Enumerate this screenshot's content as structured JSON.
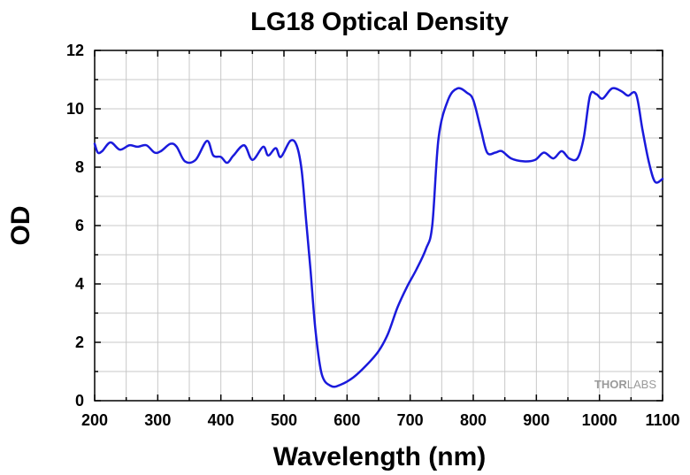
{
  "chart_data": {
    "type": "line",
    "title": "LG18 Optical Density",
    "xlabel": "Wavelength (nm)",
    "ylabel": "OD",
    "xlim": [
      200,
      1100
    ],
    "ylim": [
      0,
      12
    ],
    "x_ticks": [
      200,
      300,
      400,
      500,
      600,
      700,
      800,
      900,
      1000,
      1100
    ],
    "y_ticks": [
      0,
      2,
      4,
      6,
      8,
      10,
      12
    ],
    "grid": true,
    "legend": "none",
    "series": [
      {
        "color": "#1a1adc",
        "points": [
          [
            200,
            8.8
          ],
          [
            205,
            8.5
          ],
          [
            212,
            8.55
          ],
          [
            225,
            8.85
          ],
          [
            240,
            8.6
          ],
          [
            255,
            8.75
          ],
          [
            268,
            8.7
          ],
          [
            282,
            8.75
          ],
          [
            295,
            8.5
          ],
          [
            305,
            8.55
          ],
          [
            320,
            8.8
          ],
          [
            330,
            8.7
          ],
          [
            343,
            8.2
          ],
          [
            360,
            8.25
          ],
          [
            378,
            8.9
          ],
          [
            388,
            8.4
          ],
          [
            400,
            8.35
          ],
          [
            410,
            8.15
          ],
          [
            420,
            8.4
          ],
          [
            437,
            8.75
          ],
          [
            450,
            8.25
          ],
          [
            467,
            8.7
          ],
          [
            475,
            8.4
          ],
          [
            487,
            8.65
          ],
          [
            495,
            8.35
          ],
          [
            510,
            8.9
          ],
          [
            520,
            8.75
          ],
          [
            528,
            7.9
          ],
          [
            535,
            6.2
          ],
          [
            542,
            4.5
          ],
          [
            550,
            2.4
          ],
          [
            560,
            0.9
          ],
          [
            575,
            0.5
          ],
          [
            590,
            0.55
          ],
          [
            610,
            0.8
          ],
          [
            630,
            1.2
          ],
          [
            650,
            1.7
          ],
          [
            665,
            2.3
          ],
          [
            680,
            3.2
          ],
          [
            695,
            3.9
          ],
          [
            710,
            4.5
          ],
          [
            725,
            5.2
          ],
          [
            735,
            6.0
          ],
          [
            745,
            9.0
          ],
          [
            760,
            10.3
          ],
          [
            775,
            10.7
          ],
          [
            790,
            10.55
          ],
          [
            800,
            10.3
          ],
          [
            812,
            9.3
          ],
          [
            822,
            8.5
          ],
          [
            835,
            8.5
          ],
          [
            845,
            8.55
          ],
          [
            860,
            8.3
          ],
          [
            880,
            8.2
          ],
          [
            898,
            8.25
          ],
          [
            912,
            8.5
          ],
          [
            927,
            8.3
          ],
          [
            940,
            8.55
          ],
          [
            952,
            8.3
          ],
          [
            965,
            8.3
          ],
          [
            975,
            9.0
          ],
          [
            985,
            10.45
          ],
          [
            995,
            10.5
          ],
          [
            1005,
            10.35
          ],
          [
            1020,
            10.7
          ],
          [
            1035,
            10.6
          ],
          [
            1045,
            10.45
          ],
          [
            1058,
            10.5
          ],
          [
            1068,
            9.3
          ],
          [
            1078,
            8.2
          ],
          [
            1088,
            7.5
          ],
          [
            1100,
            7.6
          ]
        ]
      }
    ]
  },
  "watermark": {
    "part1": "THOR",
    "part2": "LABS"
  }
}
